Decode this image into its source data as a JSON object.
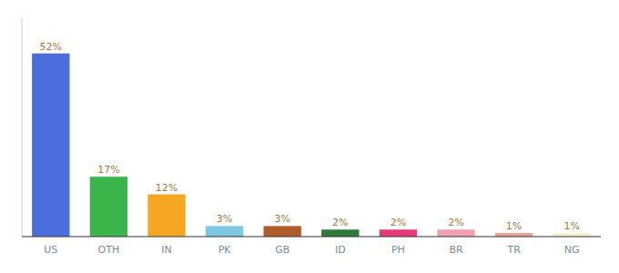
{
  "chart_data": {
    "type": "bar",
    "categories": [
      "US",
      "OTH",
      "IN",
      "PK",
      "GB",
      "ID",
      "PH",
      "BR",
      "TR",
      "NG"
    ],
    "values": [
      52,
      17,
      12,
      3,
      3,
      2,
      2,
      2,
      1,
      1
    ],
    "value_labels": [
      "52%",
      "17%",
      "12%",
      "3%",
      "3%",
      "2%",
      "2%",
      "2%",
      "1%",
      "1%"
    ],
    "colors": [
      "#4a6fdc",
      "#3ab54a",
      "#f5a623",
      "#7ec8e3",
      "#b05d2a",
      "#2d7a3a",
      "#e8387a",
      "#f0a0b0",
      "#e8a090",
      "#f5f0d0"
    ],
    "ylim": [
      0,
      62
    ],
    "grid": false,
    "data_labels": true,
    "tick_labels": "x"
  }
}
